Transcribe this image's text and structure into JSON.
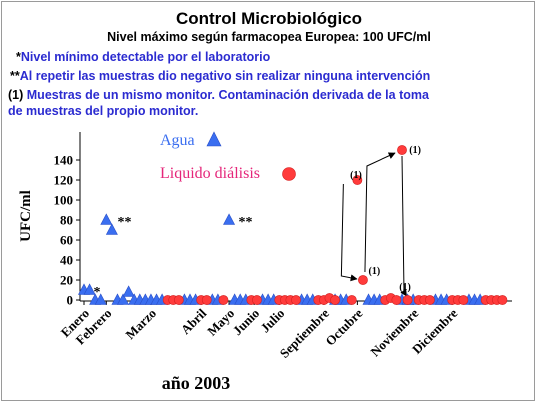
{
  "header": {
    "title": "Control Microbiológico",
    "subtitle": "Nivel máximo según farmacopea Europea: 100 UFC/ml"
  },
  "notes": [
    {
      "marker": "*",
      "text": "Nivel mínimo detectable por el laboratorio"
    },
    {
      "marker": "**",
      "text": "Al repetir las muestras dio negativo sin realizar ninguna intervención"
    },
    {
      "marker": "(1)",
      "text": "Muestras de un mismo monitor. Contaminación derivada de la toma"
    },
    {
      "marker": "",
      "text": "de muestras del propio monitor."
    }
  ],
  "chart_data": {
    "type": "scatter",
    "xlabel": "año 2003",
    "ylabel": "UFC/ml",
    "ylim": [
      0,
      150
    ],
    "yticks": [
      0,
      20,
      40,
      60,
      80,
      100,
      120,
      140
    ],
    "xlim": [
      0,
      76
    ],
    "month_labels": [
      {
        "label": "Enero",
        "x": 0
      },
      {
        "label": "Febrero",
        "x": 4
      },
      {
        "label": "Marzo",
        "x": 12
      },
      {
        "label": "Abril",
        "x": 21
      },
      {
        "label": "Mayo",
        "x": 26
      },
      {
        "label": "Junio",
        "x": 30.5
      },
      {
        "label": "Julio",
        "x": 35
      },
      {
        "label": "Septiembre",
        "x": 43
      },
      {
        "label": "Octubre",
        "x": 49
      },
      {
        "label": "Noviembre",
        "x": 59
      },
      {
        "label": "Diciembre",
        "x": 66
      }
    ],
    "series": [
      {
        "name": "Agua",
        "marker": "triangle",
        "color": "#3a6ef0",
        "points": [
          [
            0,
            10
          ],
          [
            1,
            10
          ],
          [
            2,
            0
          ],
          [
            3,
            0
          ],
          [
            4,
            80
          ],
          [
            5,
            70
          ],
          [
            6,
            0
          ],
          [
            7,
            0
          ],
          [
            8,
            8
          ],
          [
            9,
            0
          ],
          [
            10,
            0
          ],
          [
            11,
            0
          ],
          [
            12,
            0
          ],
          [
            13,
            0
          ],
          [
            14,
            0
          ],
          [
            18,
            0
          ],
          [
            19,
            0
          ],
          [
            20,
            0
          ],
          [
            23,
            0
          ],
          [
            24,
            0
          ],
          [
            26,
            80
          ],
          [
            27,
            0
          ],
          [
            28,
            0
          ],
          [
            29,
            0
          ],
          [
            32,
            0
          ],
          [
            33,
            0
          ],
          [
            34,
            0
          ],
          [
            39,
            0
          ],
          [
            40,
            0
          ],
          [
            41,
            0
          ],
          [
            45,
            0
          ],
          [
            46,
            0
          ],
          [
            47,
            0
          ],
          [
            51,
            0
          ],
          [
            52,
            0
          ],
          [
            53,
            0
          ],
          [
            57,
            0
          ],
          [
            58,
            0
          ],
          [
            59,
            0
          ],
          [
            63,
            0
          ],
          [
            64,
            0
          ],
          [
            65,
            0
          ],
          [
            69,
            0
          ],
          [
            70,
            0
          ],
          [
            71,
            0
          ]
        ]
      },
      {
        "name": "Liquido diálisis",
        "marker": "circle",
        "color": "#ff3b3b",
        "points": [
          [
            15,
            0
          ],
          [
            16,
            0
          ],
          [
            17,
            0
          ],
          [
            21,
            0
          ],
          [
            22,
            0
          ],
          [
            25,
            0
          ],
          [
            30,
            0
          ],
          [
            31,
            0
          ],
          [
            35,
            0
          ],
          [
            36,
            0
          ],
          [
            37,
            0
          ],
          [
            38,
            0
          ],
          [
            42,
            0
          ],
          [
            43,
            0
          ],
          [
            44,
            2
          ],
          [
            45,
            0
          ],
          [
            48,
            0
          ],
          [
            49,
            120
          ],
          [
            50,
            20
          ],
          [
            54,
            0
          ],
          [
            55,
            2
          ],
          [
            56,
            0
          ],
          [
            57,
            150
          ],
          [
            58,
            0
          ],
          [
            60,
            0
          ],
          [
            61,
            0
          ],
          [
            62,
            0
          ],
          [
            66,
            0
          ],
          [
            67,
            0
          ],
          [
            68,
            0
          ],
          [
            72,
            0
          ],
          [
            73,
            0
          ],
          [
            74,
            0
          ],
          [
            75,
            0
          ]
        ]
      }
    ],
    "annotations": [
      {
        "text": "*",
        "x": 1.7,
        "y": 10
      },
      {
        "text": "**",
        "x": 6,
        "y": 80
      },
      {
        "text": "**",
        "x": 27.7,
        "y": 80
      },
      {
        "text": "(1)",
        "x": 47.7,
        "y": 120
      },
      {
        "text": "(1)",
        "x": 51,
        "y": 24
      },
      {
        "text": "(1)",
        "x": 58.3,
        "y": 145
      },
      {
        "text": "(1)",
        "x": 56.5,
        "y": 8
      }
    ],
    "legend": [
      {
        "name": "Agua",
        "marker": "triangle",
        "color": "#3a6ef0",
        "text_color": "#3a6ef0"
      },
      {
        "name": "Liquido diálisis",
        "marker": "circle",
        "color": "#ff3b3b",
        "text_color": "#e5267a"
      }
    ]
  }
}
